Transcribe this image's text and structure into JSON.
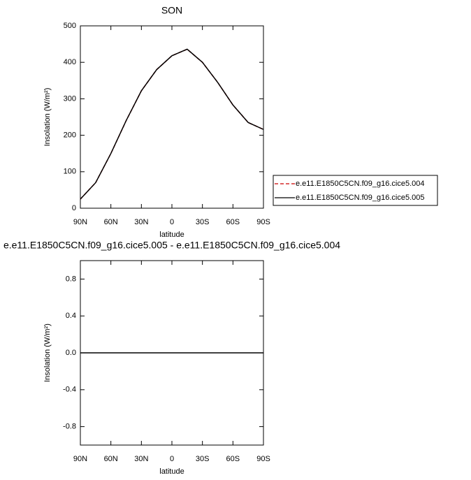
{
  "chart_data": [
    {
      "type": "line",
      "title": "SON",
      "x_label": "latitude",
      "y_label": "Insolation (W/m²)",
      "x": [
        90,
        75,
        60,
        45,
        30,
        15,
        0,
        -15,
        -30,
        -45,
        -60,
        -75,
        -90
      ],
      "xlim": [
        90,
        -90
      ],
      "xticks": [
        {
          "value": 90,
          "label": "90N"
        },
        {
          "value": 60,
          "label": "60N"
        },
        {
          "value": 30,
          "label": "30N"
        },
        0,
        {
          "value": -30,
          "label": "30S"
        },
        {
          "value": -60,
          "label": "60S"
        },
        {
          "value": -90,
          "label": "90S"
        }
      ],
      "ylim": [
        0,
        500
      ],
      "yticks": [
        0,
        100,
        200,
        300,
        400,
        500
      ],
      "legend": "right",
      "series": [
        {
          "name": "e.e11.E1850C5CN.f09_g16.cice5.004",
          "color": "#cc0000",
          "dash": "dashed",
          "values": [
            25,
            70,
            150,
            240,
            322,
            380,
            418,
            436,
            400,
            345,
            283,
            235,
            216
          ]
        },
        {
          "name": "e.e11.E1850C5CN.f09_g16.cice5.005",
          "color": "#000000",
          "dash": "solid",
          "values": [
            25,
            70,
            150,
            240,
            322,
            380,
            418,
            436,
            400,
            345,
            283,
            235,
            216
          ]
        }
      ]
    },
    {
      "type": "line",
      "title": "e.e11.E1850C5CN.f09_g16.cice5.005 - e.e11.E1850C5CN.f09_g16.cice5.004",
      "x_label": "latitude",
      "y_label": "Insolation (W/m²)",
      "x": [
        90,
        75,
        60,
        45,
        30,
        15,
        0,
        -15,
        -30,
        -45,
        -60,
        -75,
        -90
      ],
      "xlim": [
        90,
        -90
      ],
      "xticks": [
        {
          "value": 90,
          "label": "90N"
        },
        {
          "value": 60,
          "label": "60N"
        },
        {
          "value": 30,
          "label": "30N"
        },
        0,
        {
          "value": -30,
          "label": "30S"
        },
        {
          "value": -60,
          "label": "60S"
        },
        {
          "value": -90,
          "label": "90S"
        }
      ],
      "ylim": [
        -1,
        1
      ],
      "yticks": [
        -0.8,
        -0.4,
        {
          "value": 0,
          "label": "0.0"
        },
        0.4,
        0.8
      ],
      "series": [
        {
          "color": "#000000",
          "dash": "solid",
          "values": [
            0,
            0,
            0,
            0,
            0,
            0,
            0,
            0,
            0,
            0,
            0,
            0,
            0
          ]
        }
      ]
    }
  ]
}
